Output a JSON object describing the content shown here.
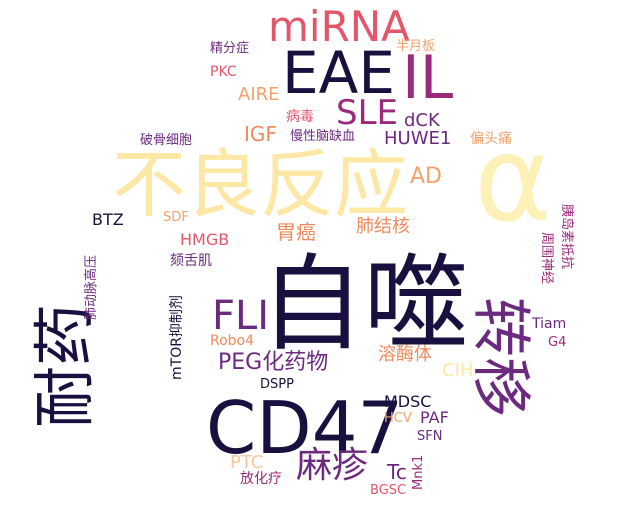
{
  "palette": {
    "dark": "#1a1040",
    "purple": "#6b2a7e",
    "magenta": "#9b2a7a",
    "red": "#e2566a",
    "coral": "#ef8a5c",
    "orange": "#f4a16a",
    "yellow": "#fde7a5",
    "pale": "#fdf1b8"
  },
  "words": [
    {
      "text": "自噬",
      "color": "#1a1040"
    },
    {
      "text": "CD47",
      "color": "#1a1040"
    },
    {
      "text": "不良反应",
      "color": "#fde7a5"
    },
    {
      "text": "α",
      "color": "#fdf1b8"
    },
    {
      "text": "耐药",
      "color": "#1a1040"
    },
    {
      "text": "转移",
      "color": "#6b2a7e"
    },
    {
      "text": "EAE",
      "color": "#1a1040"
    },
    {
      "text": "IL",
      "color": "#9b2a7a"
    },
    {
      "text": "miRNA",
      "color": "#e2566a"
    },
    {
      "text": "SLE",
      "color": "#9b2a7a"
    },
    {
      "text": "FLI",
      "color": "#6b2a7e"
    },
    {
      "text": "麻疹",
      "color": "#6b2a7e"
    },
    {
      "text": "PEG化药物",
      "color": "#6b2a7e"
    },
    {
      "text": "溶酶体",
      "color": "#ef8a5c"
    },
    {
      "text": "肺结核",
      "color": "#ef8a5c"
    },
    {
      "text": "胃癌",
      "color": "#ef8a5c"
    },
    {
      "text": "AD",
      "color": "#f4a16a"
    },
    {
      "text": "IGF",
      "color": "#ef8a5c"
    },
    {
      "text": "AIRE",
      "color": "#f4a16a"
    },
    {
      "text": "PKC",
      "color": "#e2566a"
    },
    {
      "text": "精分症",
      "color": "#6b2a7e"
    },
    {
      "text": "半月板",
      "color": "#f4a16a"
    },
    {
      "text": "病毒",
      "color": "#e2566a"
    },
    {
      "text": "dCK",
      "color": "#6b2a7e"
    },
    {
      "text": "慢性脑缺血",
      "color": "#6b2a7e"
    },
    {
      "text": "HUWE1",
      "color": "#6b2a7e"
    },
    {
      "text": "偏头痛",
      "color": "#f4a16a"
    },
    {
      "text": "破骨细胞",
      "color": "#6b2a7e"
    },
    {
      "text": "BTZ",
      "color": "#1a1040"
    },
    {
      "text": "SDF",
      "color": "#f4a16a"
    },
    {
      "text": "HMGB",
      "color": "#e2566a"
    },
    {
      "text": "颏舌肌",
      "color": "#6b2a7e"
    },
    {
      "text": "肺动脉高压",
      "color": "#6b2a7e"
    },
    {
      "text": "mTOR抑制剂",
      "color": "#1a1040"
    },
    {
      "text": "Robo4",
      "color": "#ef8a5c"
    },
    {
      "text": "DSPP",
      "color": "#1a1040"
    },
    {
      "text": "CIH",
      "color": "#fde7a5"
    },
    {
      "text": "周围神经",
      "color": "#9b2a7a"
    },
    {
      "text": "胰岛素抵抗",
      "color": "#9b2a7a"
    },
    {
      "text": "Tiam",
      "color": "#6b2a7e"
    },
    {
      "text": "G4",
      "color": "#9b2a7a"
    },
    {
      "text": "MDSC",
      "color": "#1a1040"
    },
    {
      "text": "HCV",
      "color": "#f4a16a"
    },
    {
      "text": "PAF",
      "color": "#6b2a7e"
    },
    {
      "text": "SFN",
      "color": "#6b2a7e"
    },
    {
      "text": "PTC",
      "color": "#fbc79a"
    },
    {
      "text": "Tc",
      "color": "#6b2a7e"
    },
    {
      "text": "Mnk1",
      "color": "#9b2a7a"
    },
    {
      "text": "放化疗",
      "color": "#9b2a7a"
    },
    {
      "text": "BGSC",
      "color": "#e2566a"
    }
  ]
}
